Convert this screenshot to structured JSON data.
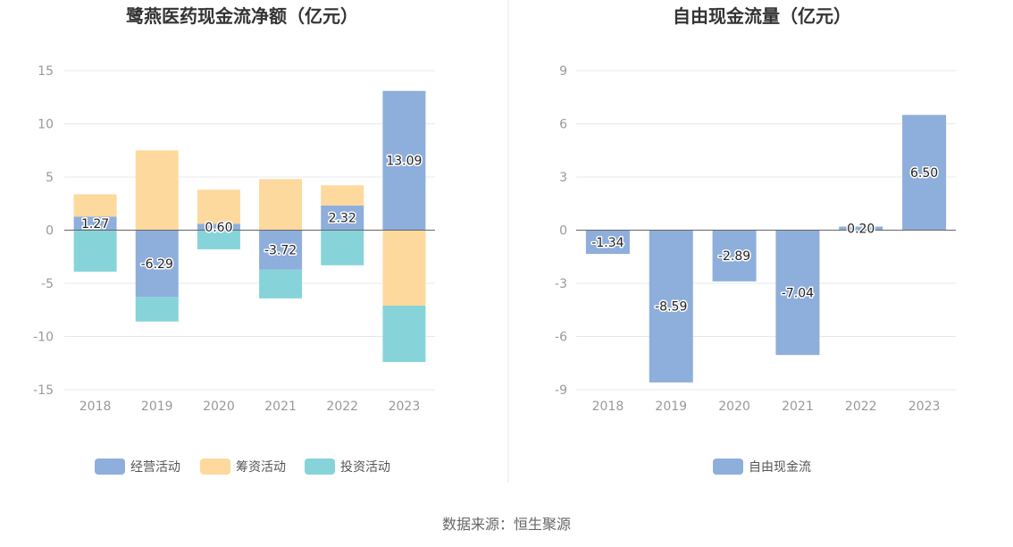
{
  "colors": {
    "operating": "#8eaedb",
    "financing": "#fdd99e",
    "investing": "#86d4d9",
    "free": "#8eaedb",
    "grid": "#e6e8ee",
    "axis": "#666666",
    "divider": "#e8e8e8"
  },
  "chart_data": [
    {
      "type": "bar",
      "stacked": true,
      "title": "鹭燕医药现金流净额（亿元）",
      "categories": [
        "2018",
        "2019",
        "2020",
        "2021",
        "2022",
        "2023"
      ],
      "series": [
        {
          "name": "经营活动",
          "values": [
            1.27,
            -6.29,
            0.6,
            -3.72,
            2.32,
            13.09
          ],
          "labels": [
            "1.27",
            "-6.29",
            "0.60",
            "-3.72",
            "2.32",
            "13.09"
          ]
        },
        {
          "name": "筹资活动",
          "values": [
            2.1,
            7.5,
            3.2,
            4.8,
            1.9,
            -7.1
          ]
        },
        {
          "name": "投资活动",
          "values": [
            -3.9,
            -2.3,
            -1.8,
            -2.7,
            -3.3,
            -5.3
          ]
        }
      ],
      "ylim": [
        -15,
        15
      ],
      "yticks": [
        "-15",
        "-10",
        "-5",
        "0",
        "5",
        "10",
        "15"
      ],
      "grid": true,
      "legend": "bottom"
    },
    {
      "type": "bar",
      "title": "自由现金流量（亿元）",
      "categories": [
        "2018",
        "2019",
        "2020",
        "2021",
        "2022",
        "2023"
      ],
      "series": [
        {
          "name": "自由现金流",
          "values": [
            -1.34,
            -8.59,
            -2.89,
            -7.04,
            0.2,
            6.5
          ],
          "labels": [
            "-1.34",
            "-8.59",
            "-2.89",
            "-7.04",
            "0.20",
            "6.50"
          ]
        }
      ],
      "ylim": [
        -9,
        9
      ],
      "yticks": [
        "-9",
        "-6",
        "-3",
        "0",
        "3",
        "6",
        "9"
      ],
      "grid": true,
      "legend": "bottom"
    }
  ],
  "source_text": "数据来源：恒生聚源"
}
